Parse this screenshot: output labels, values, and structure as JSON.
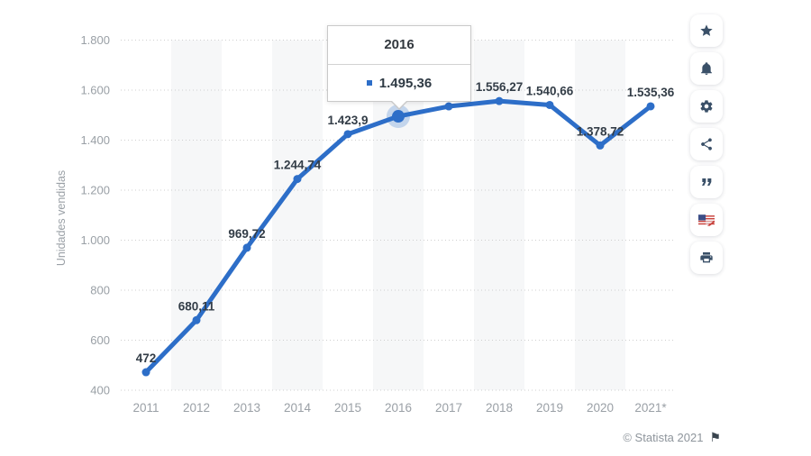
{
  "chart_data": {
    "type": "line",
    "title": "",
    "xlabel": "",
    "ylabel": "Unidades vendidas",
    "categories": [
      "2011",
      "2012",
      "2013",
      "2014",
      "2015",
      "2016",
      "2017",
      "2018",
      "2019",
      "2020",
      "2021*"
    ],
    "values": [
      472,
      680.11,
      969.72,
      1244.74,
      1423.9,
      1495.36,
      1535,
      1556.27,
      1540.66,
      1378.72,
      1535.36
    ],
    "value_labels": [
      "472",
      "680,11",
      "969,72",
      "1.244,74",
      "1.423,9",
      "",
      "",
      "1.556,27",
      "1.540,66",
      "1.378,72",
      "1.535,36"
    ],
    "estimated_indices": [
      6
    ],
    "highlight_index": 5,
    "ylim": [
      400,
      1800
    ],
    "ytick_step": 200,
    "ytick_labels": [
      "400",
      "600",
      "800",
      "1.000",
      "1.200",
      "1.400",
      "1.600",
      "1.800"
    ],
    "grid": "horizontal-dotted",
    "legend": "none",
    "line_color": "#2d6ec8",
    "band_color": "#f6f7f8",
    "label_color": "#333d47",
    "axis_text_color": "#9aa0a6",
    "grid_color": "#cfcfcf"
  },
  "tooltip": {
    "title": "2016",
    "value": "1.495,36",
    "bullet_color": "#2d6ec8"
  },
  "sidebar": {
    "items": [
      {
        "button": "favorite-button",
        "icon": "star-icon"
      },
      {
        "button": "notifications-button",
        "icon": "bell-icon"
      },
      {
        "button": "settings-button",
        "icon": "gear-icon"
      },
      {
        "button": "share-button",
        "icon": "share-icon"
      },
      {
        "button": "cite-button",
        "icon": "quote-icon"
      },
      {
        "button": "language-button",
        "icon": "flag-us-uk-icon"
      },
      {
        "button": "print-button",
        "icon": "printer-icon"
      }
    ]
  },
  "footer": {
    "copyright": "© Statista 2021",
    "flag_icon": "statista-flag-icon"
  }
}
